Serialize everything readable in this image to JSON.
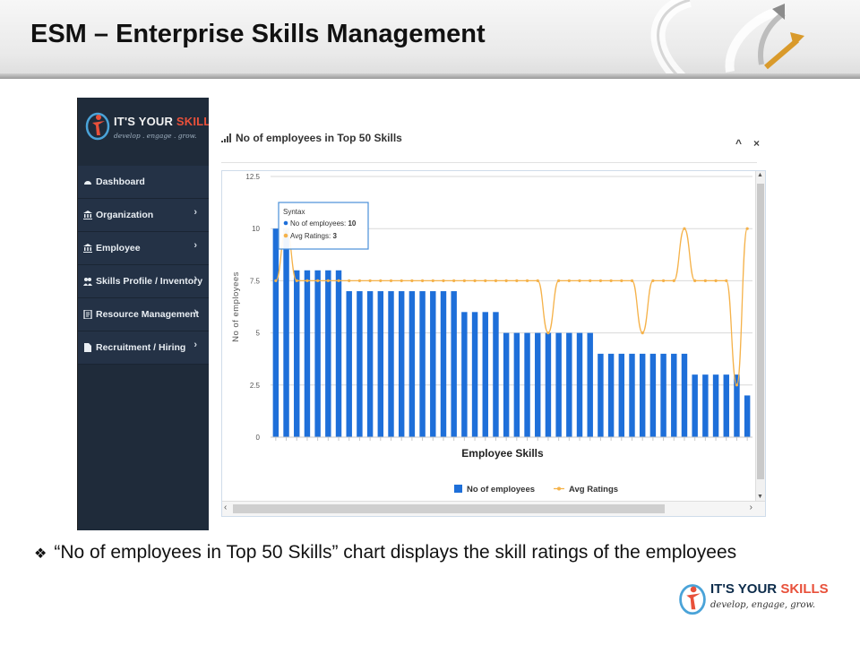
{
  "slide": {
    "title": "ESM – Enterprise Skills Management",
    "caption": "“No of employees in Top 50 Skills” chart displays the skill ratings of the employees"
  },
  "app": {
    "brand": {
      "name_part1": "IT'S YOUR ",
      "name_part2": "SKILLS",
      "tagline": "develop . engage . grow."
    },
    "nav": [
      {
        "label": "Dashboard",
        "icon": "dashboard-icon",
        "has_submenu": false
      },
      {
        "label": "Organization",
        "icon": "bank-icon",
        "has_submenu": true
      },
      {
        "label": "Employee",
        "icon": "bank-icon",
        "has_submenu": true
      },
      {
        "label": "Skills Profile / Inventory",
        "icon": "users-icon",
        "has_submenu": true
      },
      {
        "label": "Resource Management",
        "icon": "document-icon",
        "has_submenu": true
      },
      {
        "label": "Recruitment / Hiring",
        "icon": "file-icon",
        "has_submenu": true
      }
    ],
    "panel": {
      "title": "No of employees in Top 50 Skills",
      "collapse": "^",
      "close": "×"
    }
  },
  "chart_data": {
    "type": "bar",
    "xlabel": "Employee Skills",
    "ylabel": "No of employees",
    "ylim": [
      0,
      12.5
    ],
    "yticks": [
      "0",
      "2.5",
      "5",
      "7.5",
      "10",
      "12.5"
    ],
    "series": [
      {
        "name": "No of employees",
        "type": "bar",
        "color": "#1e6fd9",
        "values": [
          10,
          10,
          8,
          8,
          8,
          8,
          8,
          7,
          7,
          7,
          7,
          7,
          7,
          7,
          7,
          7,
          7,
          7,
          6,
          6,
          6,
          6,
          5,
          5,
          5,
          5,
          5,
          5,
          5,
          5,
          5,
          4,
          4,
          4,
          4,
          4,
          4,
          4,
          4,
          4,
          3,
          3,
          3,
          3,
          3,
          2
        ]
      },
      {
        "name": "Avg Ratings",
        "type": "line",
        "color": "#f5b24a",
        "values": [
          7.5,
          10,
          7.5,
          7.5,
          7.5,
          7.5,
          7.5,
          7.5,
          7.5,
          7.5,
          7.5,
          7.5,
          7.5,
          7.5,
          7.5,
          7.5,
          7.5,
          7.5,
          7.5,
          7.5,
          7.5,
          7.5,
          7.5,
          7.5,
          7.5,
          7.5,
          5,
          7.5,
          7.5,
          7.5,
          7.5,
          7.5,
          7.5,
          7.5,
          7.5,
          5,
          7.5,
          7.5,
          7.5,
          10,
          7.5,
          7.5,
          7.5,
          7.5,
          2.5,
          10
        ]
      }
    ],
    "tooltip": {
      "title": "Syntax",
      "line1_label": "No of employees:",
      "line1_value": "10",
      "line2_label": "Avg Ratings:",
      "line2_value": "3"
    },
    "legend": [
      "No of employees",
      "Avg Ratings"
    ],
    "legend_position": "bottom"
  },
  "footer_logo": {
    "name_part1": "IT'S YOUR ",
    "name_part2": "SKILLS",
    "tagline": "develop, engage, grow."
  }
}
